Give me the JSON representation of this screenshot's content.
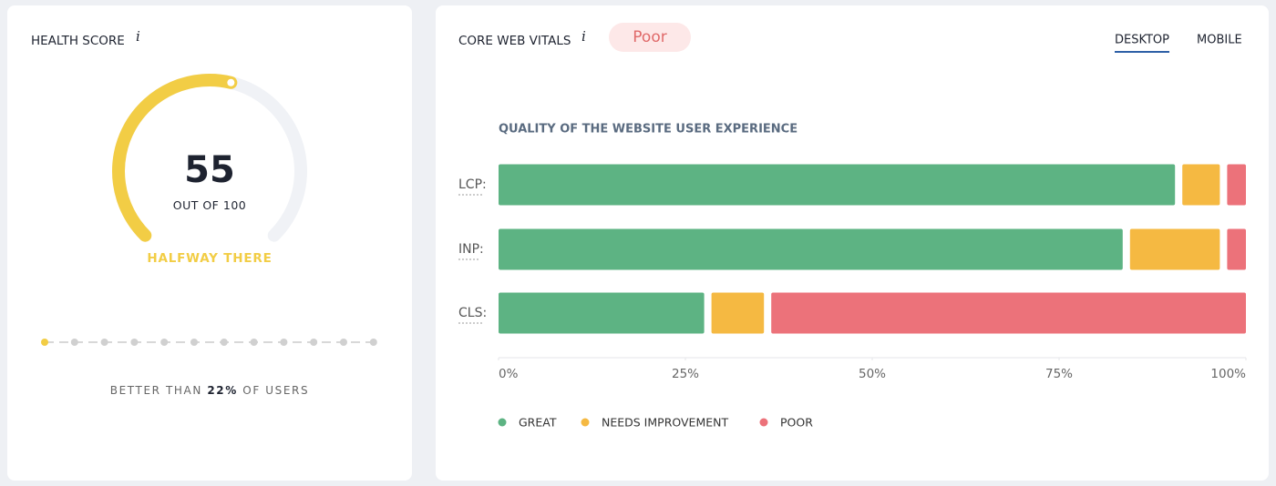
{
  "health_panel": {
    "title": "HEALTH SCORE",
    "info_icon": "i",
    "score": 55,
    "out_of_prefix": "OUT OF",
    "max": 100,
    "status": "HALFWAY THERE",
    "better_than": {
      "prefix": "BETTER THAN",
      "value": "22%",
      "suffix": "OF USERS"
    }
  },
  "vitals_panel": {
    "title": "CORE WEB VITALS",
    "info_icon": "i",
    "badge": "Poor",
    "tabs": [
      "DESKTOP",
      "MOBILE"
    ],
    "active_tab": 0
  },
  "chart_data": {
    "type": "stacked-bar-horizontal",
    "title": "QUALITY OF THE WEBSITE USER EXPERIENCE",
    "categories": [
      "LCP:",
      "INP:",
      "CLS:"
    ],
    "series": [
      {
        "name": "GREAT",
        "color": "#5db383",
        "values": [
          91,
          84,
          28
        ]
      },
      {
        "name": "NEEDS IMPROVEMENT",
        "color": "#f5b942",
        "values": [
          6,
          13,
          8
        ]
      },
      {
        "name": "POOR",
        "color": "#ec727a",
        "values": [
          3,
          3,
          64
        ]
      }
    ],
    "xlim": [
      0,
      100
    ],
    "xticks": [
      {
        "value": 0,
        "label": "0%"
      },
      {
        "value": 25,
        "label": "25%"
      },
      {
        "value": 50,
        "label": "50%"
      },
      {
        "value": 75,
        "label": "75%"
      },
      {
        "value": 100,
        "label": "100%"
      }
    ],
    "legend": "bottom-left"
  }
}
